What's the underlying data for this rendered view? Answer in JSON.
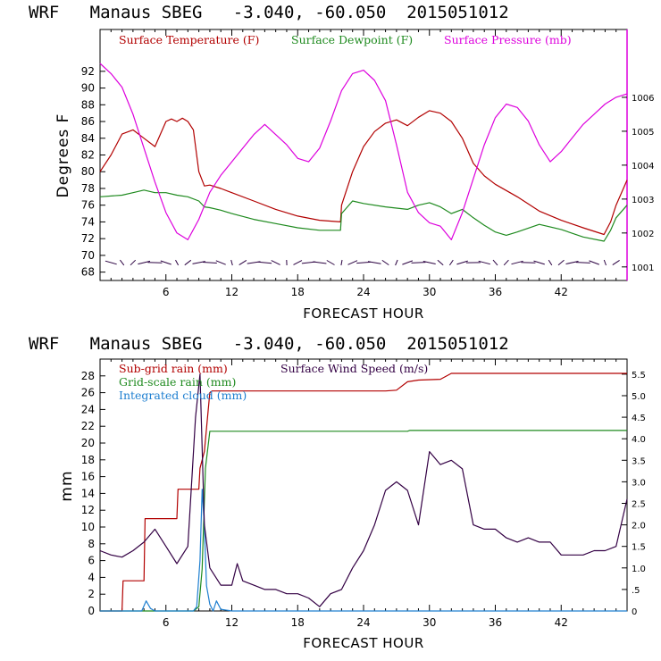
{
  "colors": {
    "temperature": "#b20000",
    "dewpoint": "#1e8a1e",
    "pressure": "#dd00dd",
    "subgrid_rain": "#b20000",
    "gridscale_rain": "#1e8a1e",
    "cloud": "#1e7fd0",
    "wind": "#330044",
    "pressure_axis": "#dd00dd"
  },
  "chart_data": [
    {
      "type": "line",
      "title": "WRF   Manaus SBEG   -3.040, -60.050  2015051012",
      "xlabel": "FORECAST HOUR",
      "ylabel": "Degrees F",
      "xlim": [
        0,
        48
      ],
      "ylim": [
        67,
        97
      ],
      "y2lim": [
        1000.6,
        1008.0
      ],
      "xticks": [
        "6",
        "12",
        "18",
        "24",
        "30",
        "36",
        "42"
      ],
      "yticks": [
        "68",
        "70",
        "72",
        "74",
        "76",
        "78",
        "80",
        "82",
        "84",
        "86",
        "88",
        "90",
        "92"
      ],
      "y2ticks": [
        "1001",
        "1002",
        "1003",
        "1004",
        "1005",
        "1006"
      ],
      "legend": [
        "Surface Temperature (F)",
        "Surface Dewpoint (F)",
        "Surface Pressure (mb)"
      ],
      "legend_position": "top",
      "series": [
        {
          "name": "Surface Temperature (F)",
          "x": [
            0,
            1,
            2,
            3,
            4,
            5,
            6,
            6.5,
            7,
            7.5,
            8,
            8.5,
            9,
            9.5,
            10,
            11,
            12,
            14,
            16,
            18,
            20,
            21.9,
            22,
            23,
            24,
            25,
            26,
            27,
            28,
            29,
            30,
            31,
            32,
            33,
            34,
            35,
            36,
            38,
            40,
            42,
            44,
            45.9,
            46.5,
            47,
            48
          ],
          "values": [
            80,
            82,
            84.5,
            85,
            84,
            83,
            86,
            86.3,
            86,
            86.4,
            86,
            85,
            80,
            78.3,
            78.4,
            78,
            77.5,
            76.5,
            75.5,
            74.7,
            74.2,
            74,
            76,
            80,
            83,
            84.8,
            85.8,
            86.2,
            85.5,
            86.5,
            87.3,
            87,
            86,
            84,
            81,
            79.5,
            78.5,
            77,
            75.3,
            74.2,
            73.3,
            72.5,
            74,
            76,
            79
          ]
        },
        {
          "name": "Surface Dewpoint (F)",
          "x": [
            0,
            2,
            3,
            4,
            5,
            6,
            7,
            8,
            9,
            9.5,
            10,
            11,
            12,
            14,
            16,
            18,
            20,
            21.9,
            22,
            23,
            24,
            26,
            28,
            29,
            30,
            31,
            32,
            33,
            34,
            35,
            36,
            37,
            38,
            40,
            42,
            44,
            45.9,
            46.5,
            47,
            48
          ],
          "values": [
            77,
            77.2,
            77.5,
            77.8,
            77.5,
            77.5,
            77.2,
            77,
            76.5,
            75.8,
            75.7,
            75.4,
            75,
            74.3,
            73.8,
            73.3,
            73,
            73,
            75,
            76.5,
            76.2,
            75.8,
            75.5,
            76,
            76.3,
            75.8,
            75,
            75.5,
            74.5,
            73.6,
            72.8,
            72.4,
            72.8,
            73.7,
            73.1,
            72.2,
            71.7,
            73,
            74.5,
            76
          ]
        },
        {
          "name": "Surface Pressure (mb)",
          "axis": "right",
          "x": [
            0,
            1,
            2,
            3,
            4,
            5,
            6,
            7,
            8,
            9,
            10,
            11,
            12,
            13,
            14,
            15,
            16,
            17,
            18,
            19,
            20,
            21,
            22,
            23,
            24,
            25,
            26,
            27,
            28,
            29,
            30,
            31,
            32,
            33,
            34,
            35,
            36,
            37,
            38,
            39,
            40,
            41,
            42,
            43,
            44,
            45,
            46,
            47,
            48
          ],
          "values": [
            1007,
            1006.7,
            1006.3,
            1005.5,
            1004.5,
            1003.5,
            1002.6,
            1002,
            1001.8,
            1002.4,
            1003.2,
            1003.7,
            1004.1,
            1004.5,
            1004.9,
            1005.2,
            1004.9,
            1004.6,
            1004.2,
            1004.1,
            1004.5,
            1005.3,
            1006.2,
            1006.7,
            1006.8,
            1006.5,
            1005.9,
            1004.6,
            1003.2,
            1002.6,
            1002.3,
            1002.2,
            1001.8,
            1002.6,
            1003.6,
            1004.6,
            1005.4,
            1005.8,
            1005.7,
            1005.3,
            1004.6,
            1004.1,
            1004.4,
            1004.8,
            1005.2,
            1005.5,
            1005.8,
            1006.0,
            1006.1
          ]
        }
      ]
    },
    {
      "type": "line",
      "title": "WRF   Manaus SBEG   -3.040, -60.050  2015051012",
      "xlabel": "FORECAST HOUR",
      "ylabel": "mm",
      "xlim": [
        0,
        48
      ],
      "ylim": [
        0,
        30
      ],
      "y2lim": [
        0,
        5.85
      ],
      "xticks": [
        "6",
        "12",
        "18",
        "24",
        "30",
        "36",
        "42"
      ],
      "yticks": [
        "0",
        "2",
        "4",
        "6",
        "8",
        "10",
        "12",
        "14",
        "16",
        "18",
        "20",
        "22",
        "24",
        "26",
        "28"
      ],
      "y2ticks": [
        "0",
        ".5",
        "1.0",
        "1.5",
        "2.0",
        "2.5",
        "3.0",
        "3.5",
        "4.0",
        "4.5",
        "5.0",
        "5.5"
      ],
      "legend": [
        "Sub-grid rain (mm)",
        "Surface Wind Speed (m/s)",
        "Grid-scale rain (mm)",
        "Integrated cloud (mm)"
      ],
      "legend_position": "top-left",
      "series": [
        {
          "name": "Sub-grid rain (mm)",
          "x": [
            0,
            2,
            2.1,
            4,
            4.1,
            7,
            7.1,
            9,
            9.1,
            9.5,
            10,
            10.2,
            12,
            26,
            27,
            28,
            29,
            31,
            32,
            48
          ],
          "values": [
            0,
            0,
            3.6,
            3.6,
            11,
            11,
            14.5,
            14.5,
            17,
            19,
            26,
            26.2,
            26.2,
            26.2,
            26.3,
            27.3,
            27.5,
            27.6,
            28.3,
            28.3
          ]
        },
        {
          "name": "Grid-scale rain (mm)",
          "x": [
            0,
            8.5,
            9,
            9.3,
            9.6,
            10,
            12,
            28,
            28.2,
            48
          ],
          "values": [
            0,
            0,
            0.5,
            5,
            17,
            21.4,
            21.4,
            21.4,
            21.5,
            21.5
          ]
        },
        {
          "name": "Integrated cloud (mm)",
          "x": [
            0,
            3.8,
            4.2,
            4.6,
            5,
            8.5,
            8.8,
            9.1,
            9.3,
            9.5,
            9.7,
            10.0,
            10.3,
            10.6,
            11,
            12,
            13,
            48
          ],
          "values": [
            0,
            0,
            1.2,
            0.3,
            0,
            0,
            0.5,
            6,
            14.5,
            10,
            3,
            0.8,
            0,
            1.2,
            0.2,
            0,
            0,
            0
          ]
        },
        {
          "name": "Surface Wind Speed (m/s)",
          "axis": "right",
          "x": [
            0,
            1,
            2,
            3,
            4,
            5,
            6,
            7,
            8,
            8.7,
            9.1,
            9.5,
            10,
            11,
            12,
            12.5,
            13,
            14,
            15,
            16,
            17,
            18,
            19,
            20,
            21,
            22,
            23,
            24,
            25,
            26,
            27,
            28,
            29,
            30,
            31,
            32,
            33,
            34,
            35,
            36,
            37,
            38,
            39,
            40,
            41,
            42,
            43,
            44,
            45,
            46,
            47,
            48
          ],
          "values": [
            1.4,
            1.3,
            1.25,
            1.4,
            1.6,
            1.9,
            1.5,
            1.1,
            1.5,
            4.5,
            5.5,
            2.0,
            1.0,
            0.6,
            0.6,
            1.1,
            0.7,
            0.6,
            0.5,
            0.5,
            0.4,
            0.4,
            0.3,
            0.1,
            0.4,
            0.5,
            1.0,
            1.4,
            2.0,
            2.8,
            3.0,
            2.8,
            2.0,
            3.7,
            3.4,
            3.5,
            3.3,
            2.0,
            1.9,
            1.9,
            1.7,
            1.6,
            1.7,
            1.6,
            1.6,
            1.3,
            1.3,
            1.3,
            1.4,
            1.4,
            1.5,
            2.6
          ]
        }
      ]
    }
  ]
}
